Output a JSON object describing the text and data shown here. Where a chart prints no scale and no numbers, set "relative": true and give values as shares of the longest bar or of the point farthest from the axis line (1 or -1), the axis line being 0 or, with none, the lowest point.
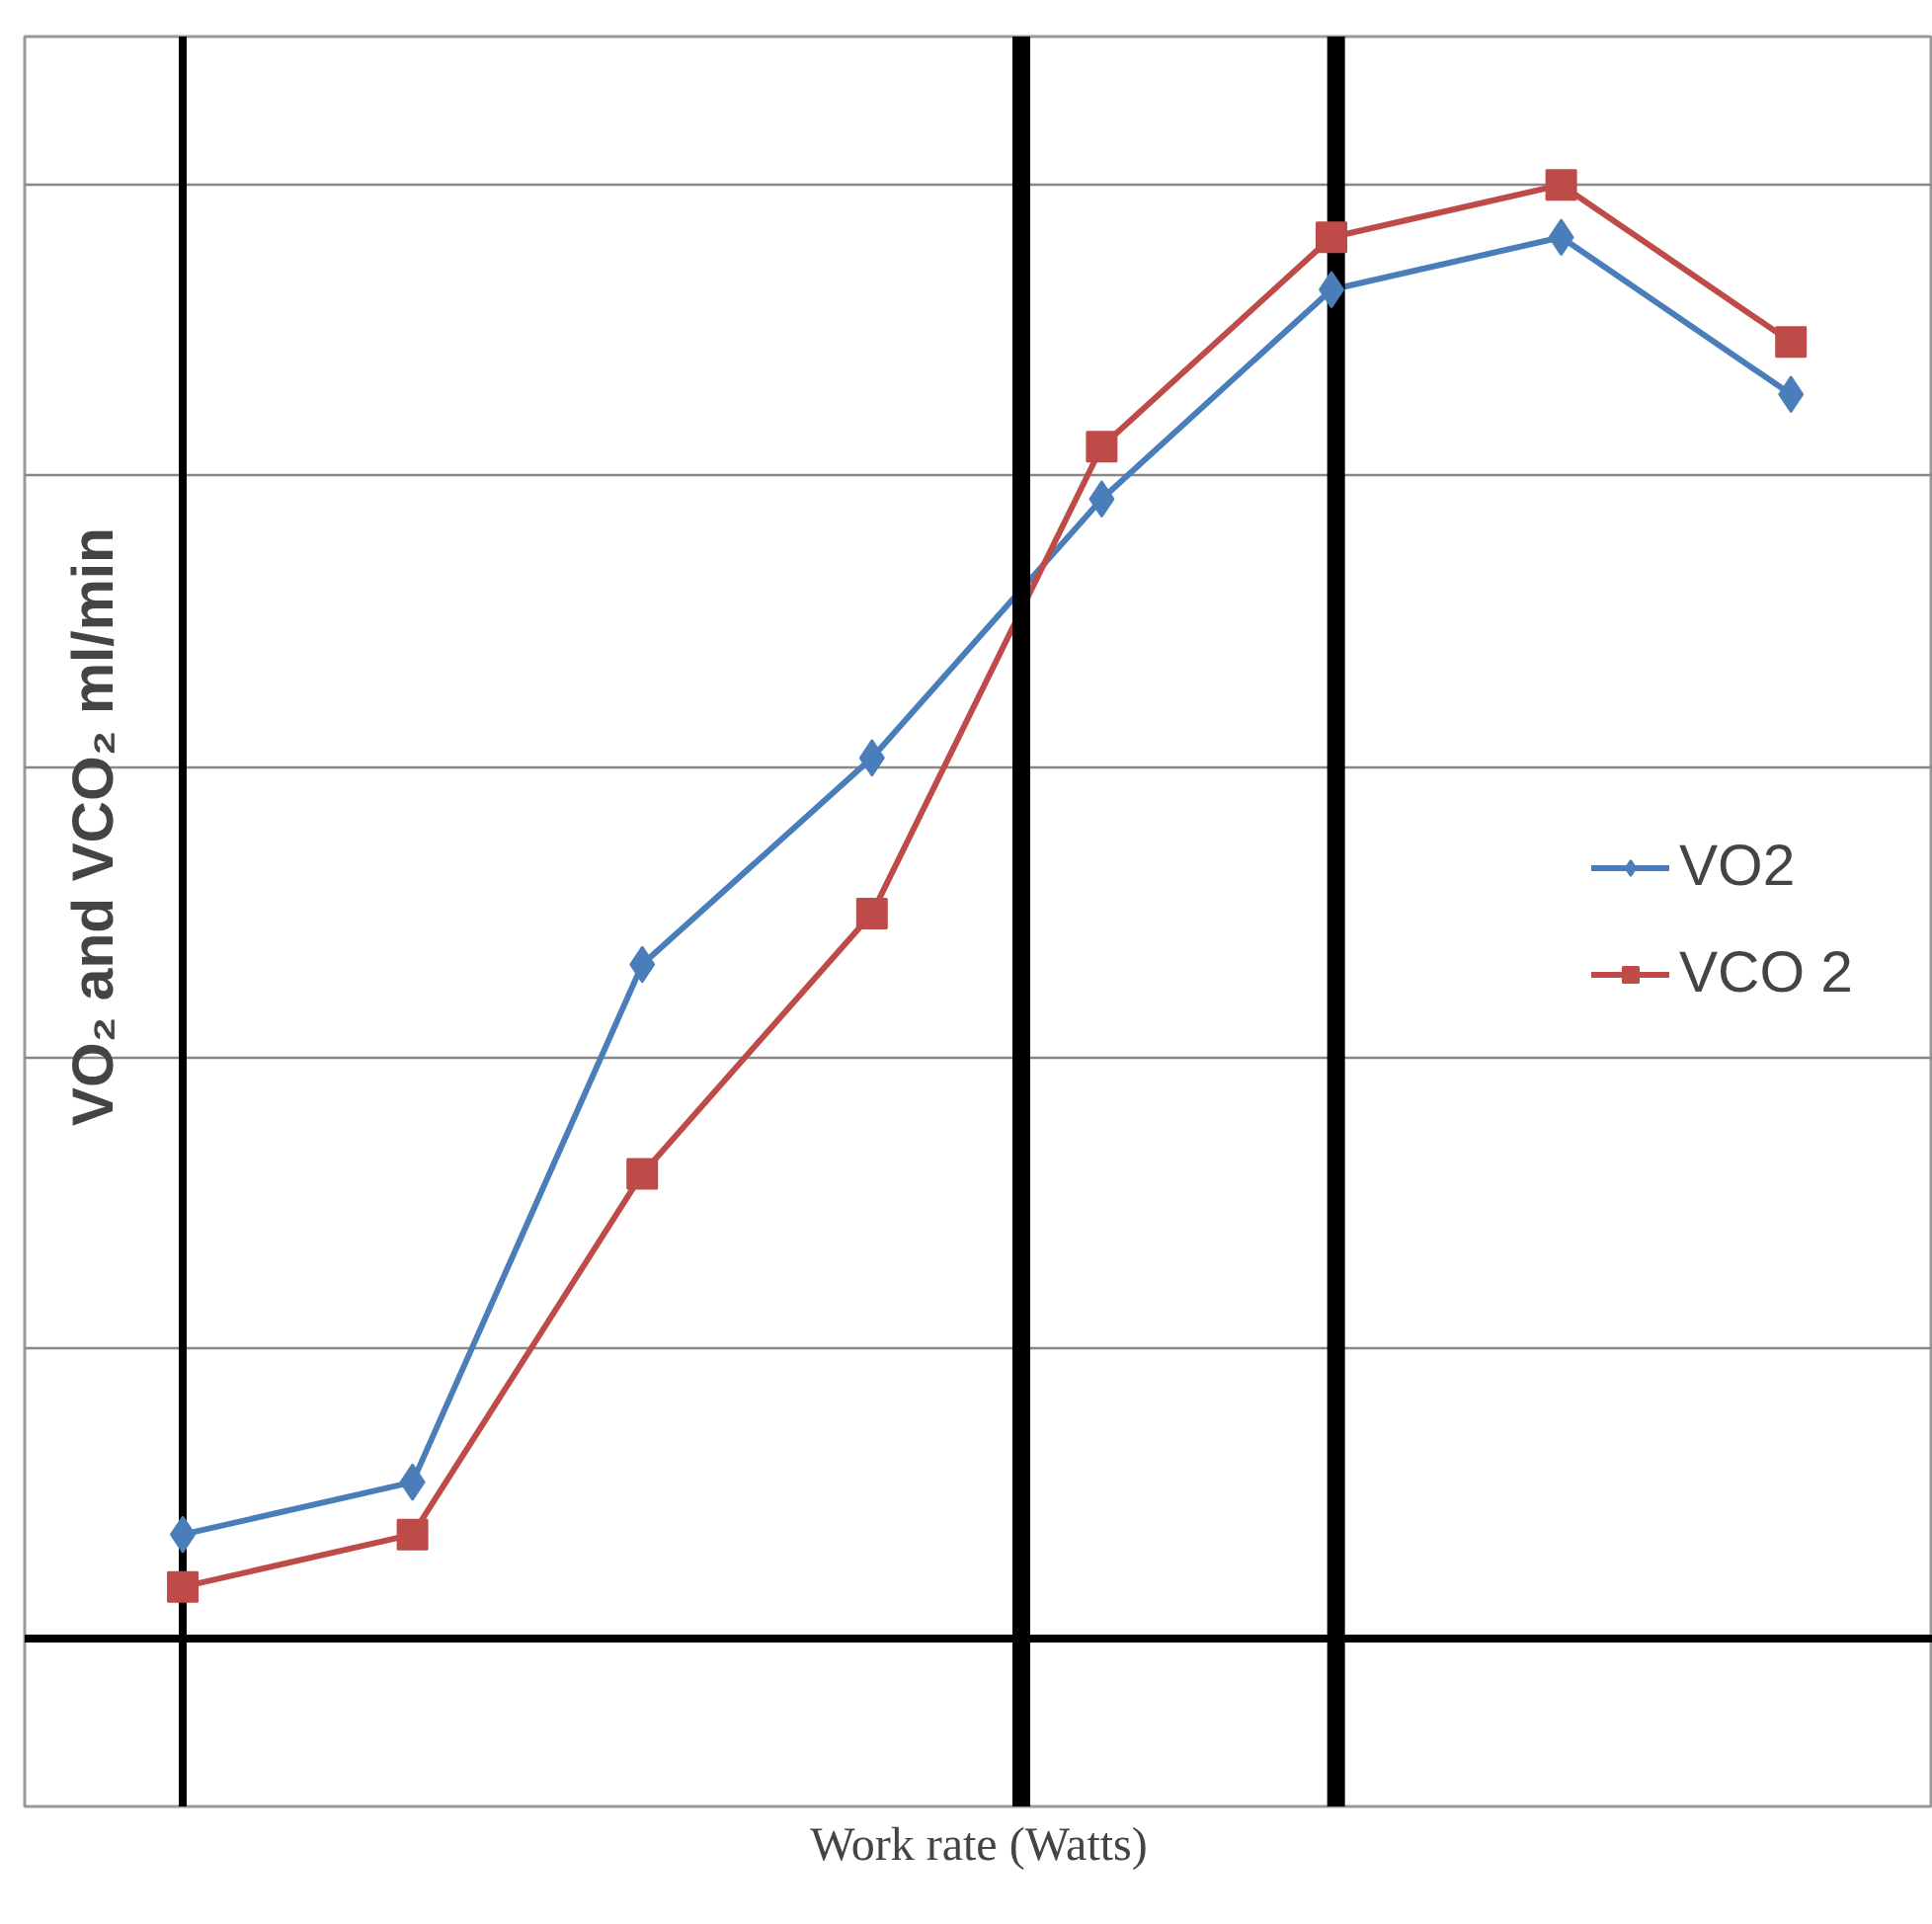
{
  "chart_data": {
    "type": "line",
    "relative": true,
    "ylabel": "VO₂ and VCO₂  ml/min",
    "xlabel": "Work rate (Watts)",
    "categories": [
      null,
      null,
      null,
      null,
      null,
      null,
      null,
      null
    ],
    "series": [
      {
        "name": "VO2",
        "color": "#4a7ebb",
        "marker": "diamond",
        "values": [
          0.072,
          0.108,
          0.464,
          0.606,
          0.784,
          0.928,
          0.964,
          0.856
        ]
      },
      {
        "name": "VCO 2",
        "color": "#be4b48",
        "marker": "square",
        "values": [
          0.036,
          0.072,
          0.32,
          0.499,
          0.82,
          0.964,
          1.0,
          0.892
        ]
      }
    ],
    "grid": "y",
    "legend": "right",
    "line_style": "solid"
  }
}
